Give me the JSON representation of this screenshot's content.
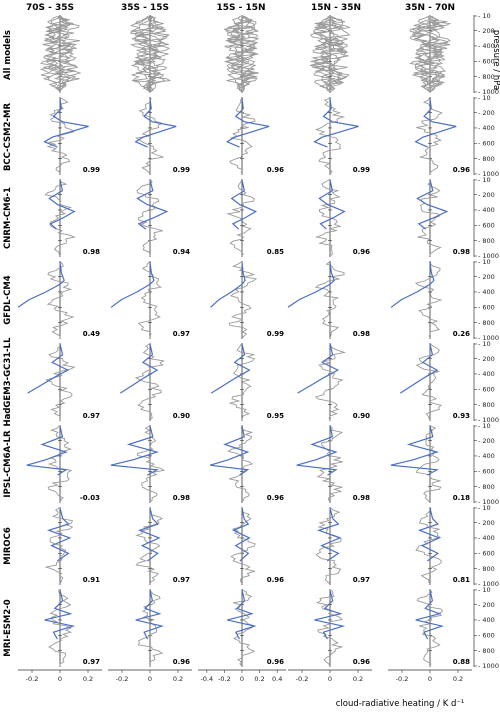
{
  "columns": [
    "70S - 35S",
    "35S - 15S",
    "15S - 15N",
    "15N - 35N",
    "35N - 70N"
  ],
  "rows": [
    "All models",
    "BCC-CSM2-MR",
    "CNRM-CM6-1",
    "GFDL-CM4",
    "HadGEM3-GC31-LL",
    "IPSL-CM6A-LR",
    "MIROC6",
    "MRI-ESM2-0"
  ],
  "correlations": [
    [
      "",
      "",
      "",
      "",
      ""
    ],
    [
      "0.99",
      "0.99",
      "0.96",
      "0.99",
      "0.96"
    ],
    [
      "0.98",
      "0.94",
      "0.85",
      "0.96",
      "0.98"
    ],
    [
      "0.49",
      "0.97",
      "0.99",
      "0.98",
      "0.26"
    ],
    [
      "0.97",
      "0.90",
      "0.95",
      "0.90",
      "0.93"
    ],
    [
      "-0.03",
      "0.98",
      "0.96",
      "0.98",
      "0.18"
    ],
    [
      "0.91",
      "0.97",
      "0.96",
      "0.97",
      "0.81"
    ],
    [
      "0.97",
      "0.96",
      "0.96",
      "0.96",
      "0.88"
    ]
  ],
  "pressure_ticks": [
    "10",
    "200",
    "400",
    "600",
    "800",
    "1000"
  ],
  "pressure_label": "pressure / hPa",
  "x_tick_labels": [
    [
      "-0.2",
      "0",
      "0.2"
    ],
    [
      "-0.2",
      "0",
      "0.2"
    ],
    [
      "-0.4",
      "-0.2",
      "0",
      "0.2",
      "0.4"
    ],
    [
      "-0.2",
      "0",
      "0.2"
    ],
    [
      "-0.2",
      "0",
      "0.2"
    ]
  ],
  "x_label": "cloud-radiative heating / K d⁻¹",
  "colors": {
    "model": "#4a6fc7",
    "reference": "#9a9a9a",
    "axis": "#333333"
  },
  "chart_data": {
    "type": "line",
    "title": "",
    "xlabel": "cloud-radiative heating / K d⁻¹",
    "ylabel": "pressure / hPa",
    "ylim": [
      1000,
      10
    ],
    "xlim_by_column": [
      [
        -0.3,
        0.3
      ],
      [
        -0.3,
        0.3
      ],
      [
        -0.5,
        0.5
      ],
      [
        -0.3,
        0.3
      ],
      [
        -0.3,
        0.3
      ]
    ],
    "grid": false,
    "panels_note_layout": "8 rows x 5 columns; blue = selected model, grey = reference profiles",
    "series": [
      {
        "name": "BCC-CSM2-MR",
        "pressure": [
          10,
          150,
          250,
          320,
          380,
          450,
          520,
          580,
          650,
          800,
          1000
        ],
        "values": [
          0.0,
          0.01,
          -0.05,
          0.02,
          0.22,
          0.08,
          -0.06,
          -0.12,
          -0.02,
          0.0,
          0.0
        ]
      },
      {
        "name": "CNRM-CM6-1",
        "pressure": [
          10,
          150,
          250,
          330,
          420,
          500,
          580,
          650,
          800,
          1000
        ],
        "values": [
          0.0,
          0.02,
          -0.09,
          -0.02,
          0.12,
          0.03,
          -0.08,
          -0.03,
          0.0,
          0.0
        ]
      },
      {
        "name": "GFDL-CM4",
        "pressure": [
          10,
          150,
          250,
          300,
          400,
          500,
          600,
          800,
          1000
        ],
        "values": [
          0.0,
          0.01,
          0.03,
          0.0,
          -0.1,
          -0.22,
          -0.3,
          0.0,
          0.0
        ]
      },
      {
        "name": "HadGEM3-GC31-LL",
        "pressure": [
          10,
          150,
          250,
          350,
          450,
          550,
          650,
          800,
          1000
        ],
        "values": [
          0.0,
          0.02,
          -0.06,
          0.06,
          -0.05,
          -0.15,
          -0.25,
          0.0,
          0.0
        ]
      },
      {
        "name": "IPSL-CM6A-LR",
        "pressure": [
          10,
          150,
          250,
          350,
          450,
          520,
          580,
          650,
          800,
          1000
        ],
        "values": [
          0.0,
          0.02,
          -0.15,
          0.05,
          -0.12,
          -0.28,
          0.05,
          -0.02,
          0.0,
          0.0
        ]
      },
      {
        "name": "MIROC6",
        "pressure": [
          10,
          150,
          220,
          300,
          400,
          500,
          600,
          700,
          800,
          1000
        ],
        "values": [
          0.0,
          0.02,
          0.06,
          -0.08,
          0.07,
          -0.06,
          0.06,
          -0.02,
          0.0,
          0.0
        ]
      },
      {
        "name": "MRI-ESM2-0",
        "pressure": [
          10,
          150,
          250,
          320,
          400,
          480,
          560,
          650,
          800,
          1000
        ],
        "values": [
          0.0,
          0.02,
          -0.04,
          0.08,
          -0.12,
          0.1,
          -0.05,
          -0.02,
          0.0,
          0.0
        ]
      }
    ]
  }
}
